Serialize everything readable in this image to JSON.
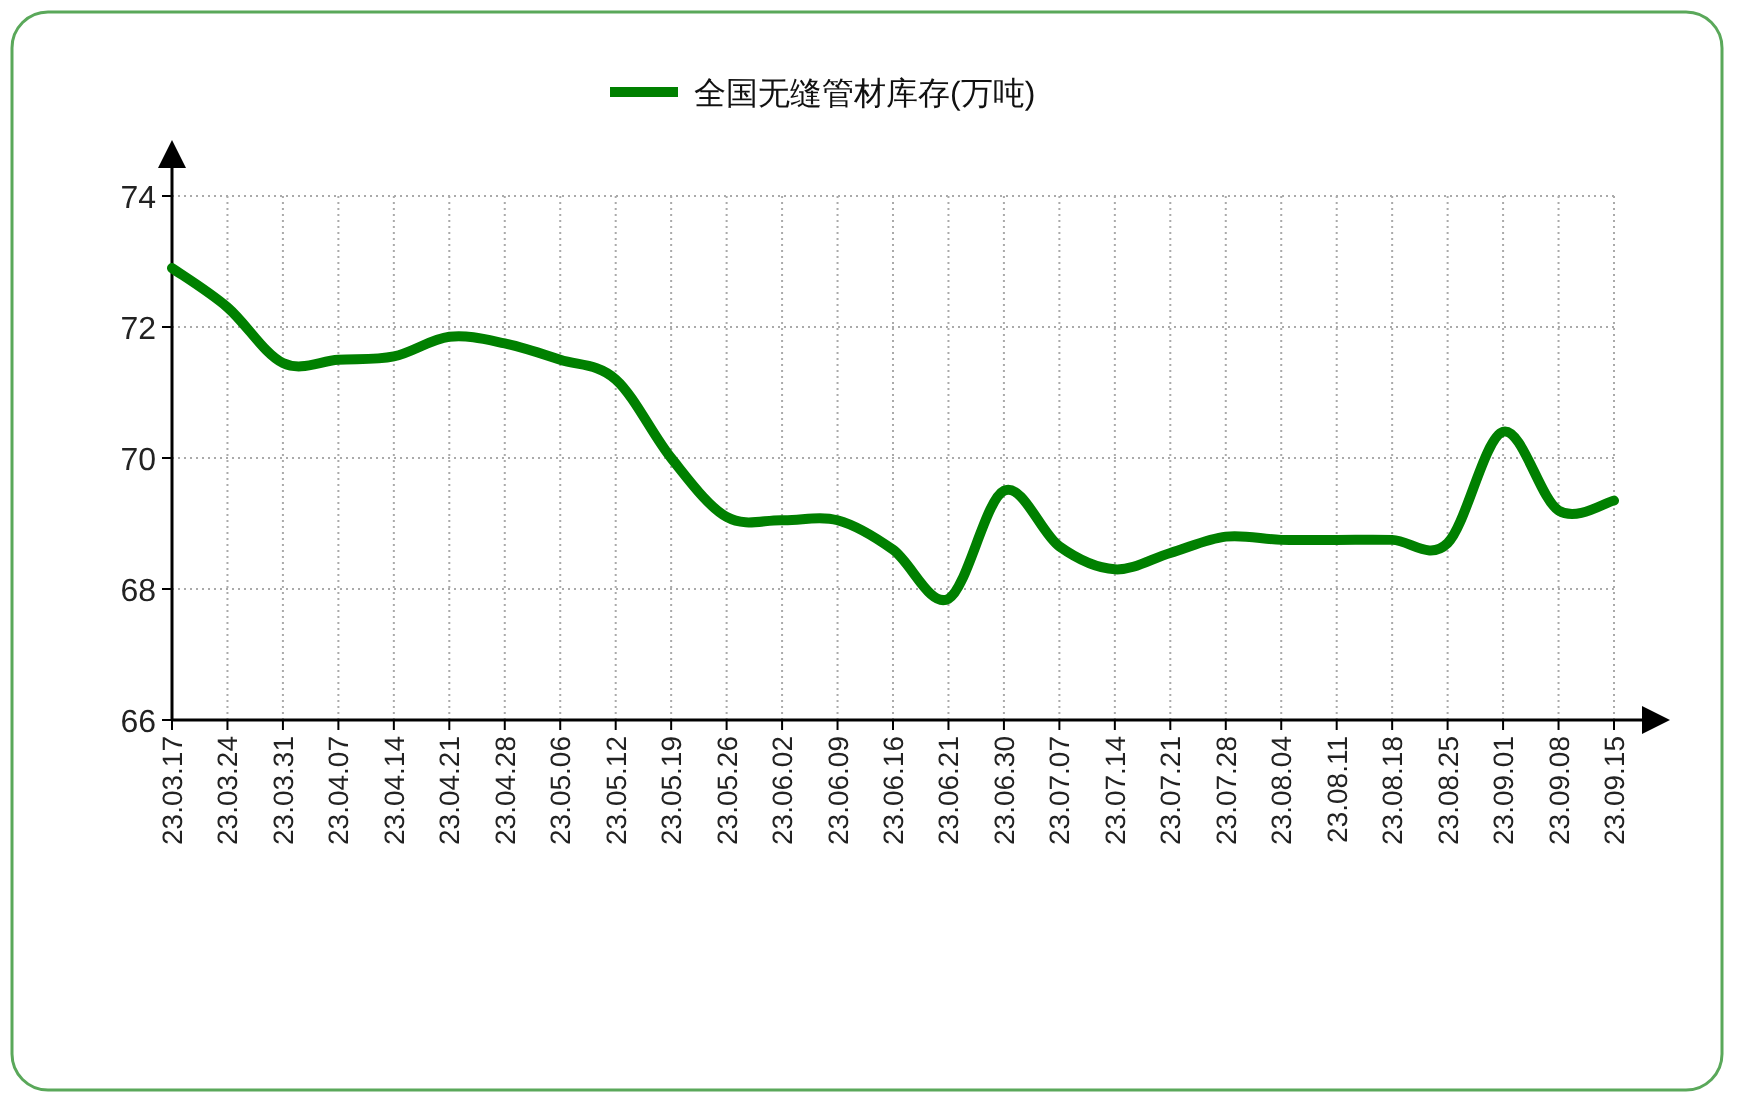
{
  "chart_data": {
    "type": "line",
    "categories": [
      "23.03.17",
      "23.03.24",
      "23.03.31",
      "23.04.07",
      "23.04.14",
      "23.04.21",
      "23.04.28",
      "23.05.06",
      "23.05.12",
      "23.05.19",
      "23.05.26",
      "23.06.02",
      "23.06.09",
      "23.06.16",
      "23.06.21",
      "23.06.30",
      "23.07.07",
      "23.07.14",
      "23.07.21",
      "23.07.28",
      "23.08.04",
      "23.08.11",
      "23.08.18",
      "23.08.25",
      "23.09.01",
      "23.09.08",
      "23.09.15"
    ],
    "series": [
      {
        "name": "全国无缝管材库存(万吨)",
        "color": "#008000",
        "values": [
          72.9,
          72.3,
          71.45,
          71.5,
          71.55,
          71.85,
          71.75,
          71.5,
          71.2,
          70.0,
          69.1,
          69.05,
          69.05,
          68.6,
          67.85,
          69.5,
          68.65,
          68.3,
          68.55,
          68.8,
          68.75,
          68.75,
          68.75,
          68.7,
          70.4,
          69.2,
          69.35
        ]
      }
    ],
    "ylim": [
      66,
      74
    ],
    "yticks": [
      66,
      68,
      70,
      72,
      74
    ],
    "grid": true,
    "legend": "top"
  }
}
